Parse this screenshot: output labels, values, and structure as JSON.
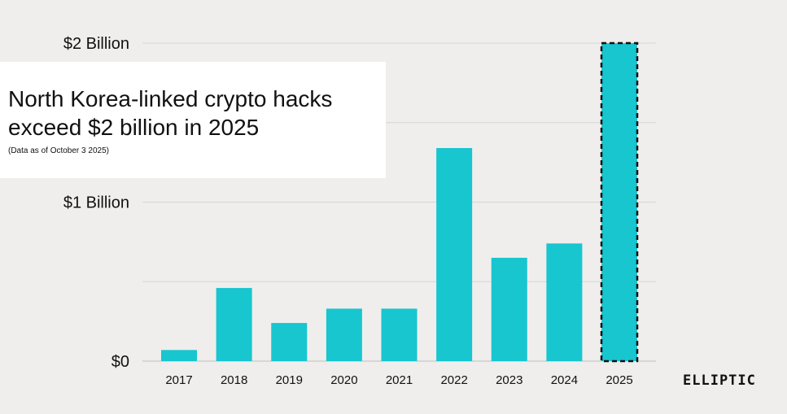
{
  "title": "North Korea-linked crypto hacks exceed $2 billion in 2025",
  "subtitle": "(Data as of October 3 2025)",
  "brand": "ELLIPTIC",
  "colors": {
    "bar": "#17c6cf",
    "background": "#efeeec",
    "grid": "#d6d6d4",
    "highlight_border": "#111111"
  },
  "chart_data": {
    "type": "bar",
    "categories": [
      "2017",
      "2018",
      "2019",
      "2020",
      "2021",
      "2022",
      "2023",
      "2024",
      "2025"
    ],
    "values": [
      0.07,
      0.46,
      0.24,
      0.33,
      0.33,
      1.34,
      0.65,
      0.74,
      2.0
    ],
    "unit": "billion USD",
    "ylim": [
      0,
      2
    ],
    "y_tick_values": [
      0,
      1,
      2
    ],
    "y_tick_labels": [
      "$0",
      "$1 Billion",
      "$2 Billion"
    ],
    "minor_gridlines": [
      0.5,
      1.5
    ],
    "grid": true,
    "highlighted_category": "2025",
    "highlight_style": "dashed-border"
  }
}
